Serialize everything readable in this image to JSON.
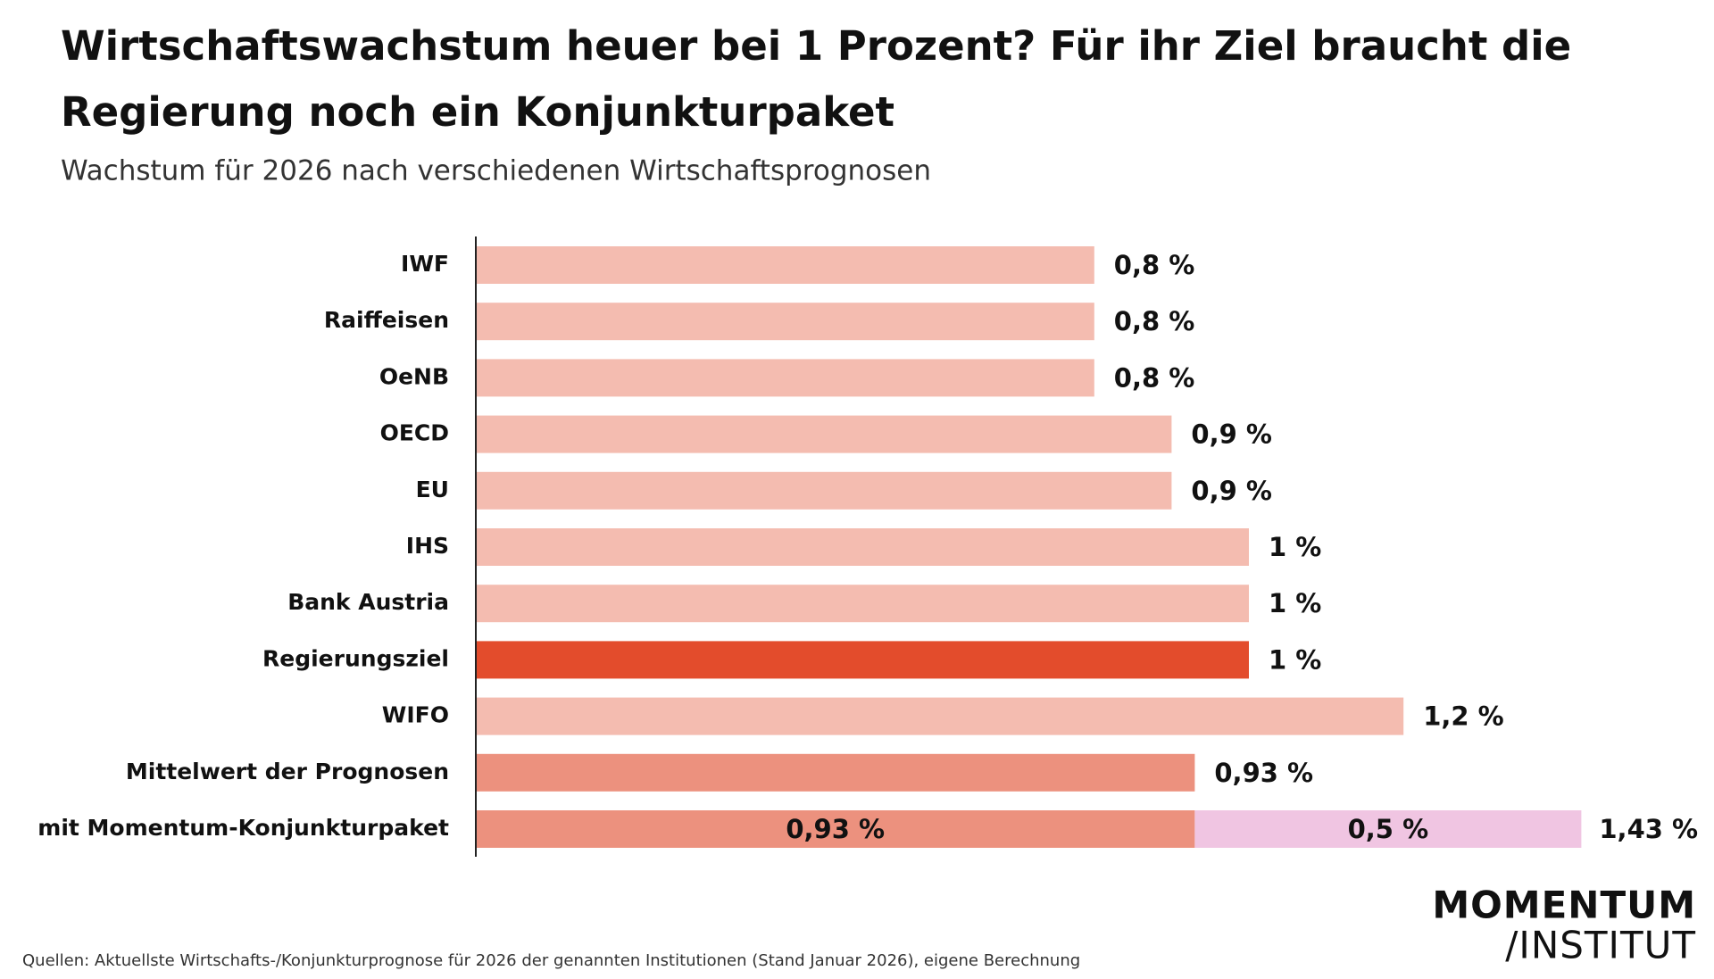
{
  "chart_data": {
    "type": "hbar-stacked",
    "title": [
      "Wirtschaftswachstum heuer bei 1 Prozent? Für ihr Ziel braucht die",
      "Regierung noch ein Konjunkturpaket"
    ],
    "subtitle": "Wachstum für 2026 nach verschiedenen Wirtschaftsprognosen",
    "categories": [
      "IWF",
      "Raiffeisen",
      "OeNB",
      "OECD",
      "EU",
      "IHS",
      "Bank Austria",
      "Regierungsziel",
      "WIFO",
      "Mittelwert der Prognosen",
      "mit Momentum-Konjunkturpaket"
    ],
    "series": [
      {
        "values": [
          0.8,
          0.8,
          0.8,
          0.9,
          0.9,
          1,
          1,
          1,
          1.2,
          0.93,
          0.93
        ],
        "value_labels": [
          "0,8 %",
          "0,8 %",
          "0,8 %",
          "0,9 %",
          "0,9 %",
          "1 %",
          "1 %",
          "1 %",
          "1,2 %",
          "0,93 %",
          "0,93 %"
        ],
        "colors": [
          "#f4bcb0",
          "#f4bcb0",
          "#f4bcb0",
          "#f4bcb0",
          "#f4bcb0",
          "#f4bcb0",
          "#f4bcb0",
          "#e34c2c",
          "#f4bcb0",
          "#ec917e",
          "#ec917e"
        ]
      },
      {
        "values": [
          null,
          null,
          null,
          null,
          null,
          null,
          null,
          null,
          null,
          null,
          0.5
        ],
        "value_labels": [
          null,
          null,
          null,
          null,
          null,
          null,
          null,
          null,
          null,
          null,
          "0,5 %"
        ],
        "color": "#f0c5e2"
      }
    ],
    "totals": [
      null,
      null,
      null,
      null,
      null,
      null,
      null,
      null,
      null,
      null,
      {
        "value": 1.43,
        "label": "1,43 %"
      }
    ],
    "xlim": [
      0,
      1.5
    ],
    "source": "Quellen: Aktuellste Wirtschafts-/Konjunkturprognose für 2026 der genannten Institutionen (Stand Januar 2026), eigene Berechnung",
    "logo": [
      "MOMENTUM",
      "/INSTITUT"
    ]
  }
}
